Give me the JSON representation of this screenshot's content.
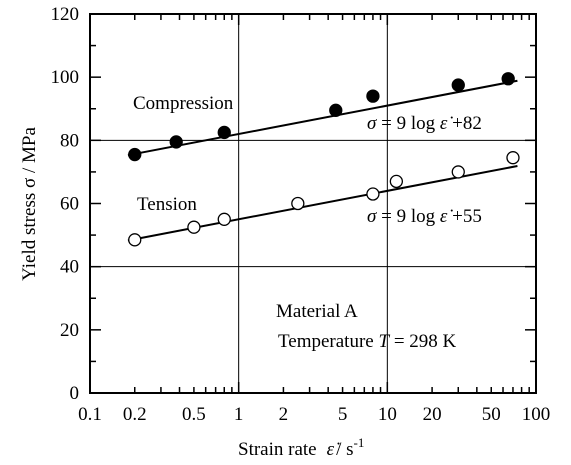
{
  "chart_data": {
    "type": "scatter",
    "x_scale": "log",
    "xlim": [
      0.1,
      100
    ],
    "ylim": [
      0,
      120
    ],
    "grid": {
      "x": [
        1,
        10
      ],
      "y": [
        40,
        80
      ]
    },
    "xlabel": {
      "main": "Strain rate",
      "symbol": "ε̇",
      "unit": "/ s",
      "exp": "-1"
    },
    "ylabel": "Yield stress  σ / MPa",
    "x_tick_labels": [
      {
        "value": 0.1,
        "label": "0.1"
      },
      {
        "value": 0.2,
        "label": "0.2"
      },
      {
        "value": 0.5,
        "label": "0.5"
      },
      {
        "value": 1,
        "label": "1"
      },
      {
        "value": 2,
        "label": "2"
      },
      {
        "value": 5,
        "label": "5"
      },
      {
        "value": 10,
        "label": "10"
      },
      {
        "value": 20,
        "label": "20"
      },
      {
        "value": 50,
        "label": "50"
      },
      {
        "value": 100,
        "label": "100"
      }
    ],
    "y_tick_labels": [
      {
        "value": 0,
        "label": "0"
      },
      {
        "value": 20,
        "label": "20"
      },
      {
        "value": 40,
        "label": "40"
      },
      {
        "value": 60,
        "label": "60"
      },
      {
        "value": 80,
        "label": "80"
      },
      {
        "value": 100,
        "label": "100"
      },
      {
        "value": 120,
        "label": "120"
      }
    ],
    "series": [
      {
        "name": "Compression",
        "marker": "filled-circle",
        "fit_label": {
          "sigma": "σ",
          "text": " = 9 log ",
          "rate": "ε̇",
          "tail": " +82"
        },
        "fit": {
          "slope": 9,
          "intercept": 82,
          "x_range": [
            0.18,
            75
          ]
        },
        "points": [
          [
            0.2,
            75.5
          ],
          [
            0.38,
            79.5
          ],
          [
            0.8,
            82.5
          ],
          [
            4.5,
            89.5
          ],
          [
            8,
            94
          ],
          [
            30,
            97.5
          ],
          [
            65,
            99.5
          ]
        ]
      },
      {
        "name": "Tension",
        "marker": "open-circle",
        "fit_label": {
          "sigma": "σ",
          "text": " = 9 log ",
          "rate": "ε̇",
          "tail": " +55"
        },
        "fit": {
          "slope": 9,
          "intercept": 55,
          "x_range": [
            0.18,
            75
          ]
        },
        "points": [
          [
            0.2,
            48.5
          ],
          [
            0.5,
            52.5
          ],
          [
            0.8,
            55
          ],
          [
            2.5,
            60
          ],
          [
            8,
            63
          ],
          [
            11.5,
            67
          ],
          [
            30,
            70
          ],
          [
            70,
            74.5
          ]
        ]
      }
    ],
    "annotation": {
      "line1": "Material A",
      "line2_prefix": "Temperature ",
      "line2_symbol": "T",
      "line2_suffix": " = 298 K"
    }
  }
}
